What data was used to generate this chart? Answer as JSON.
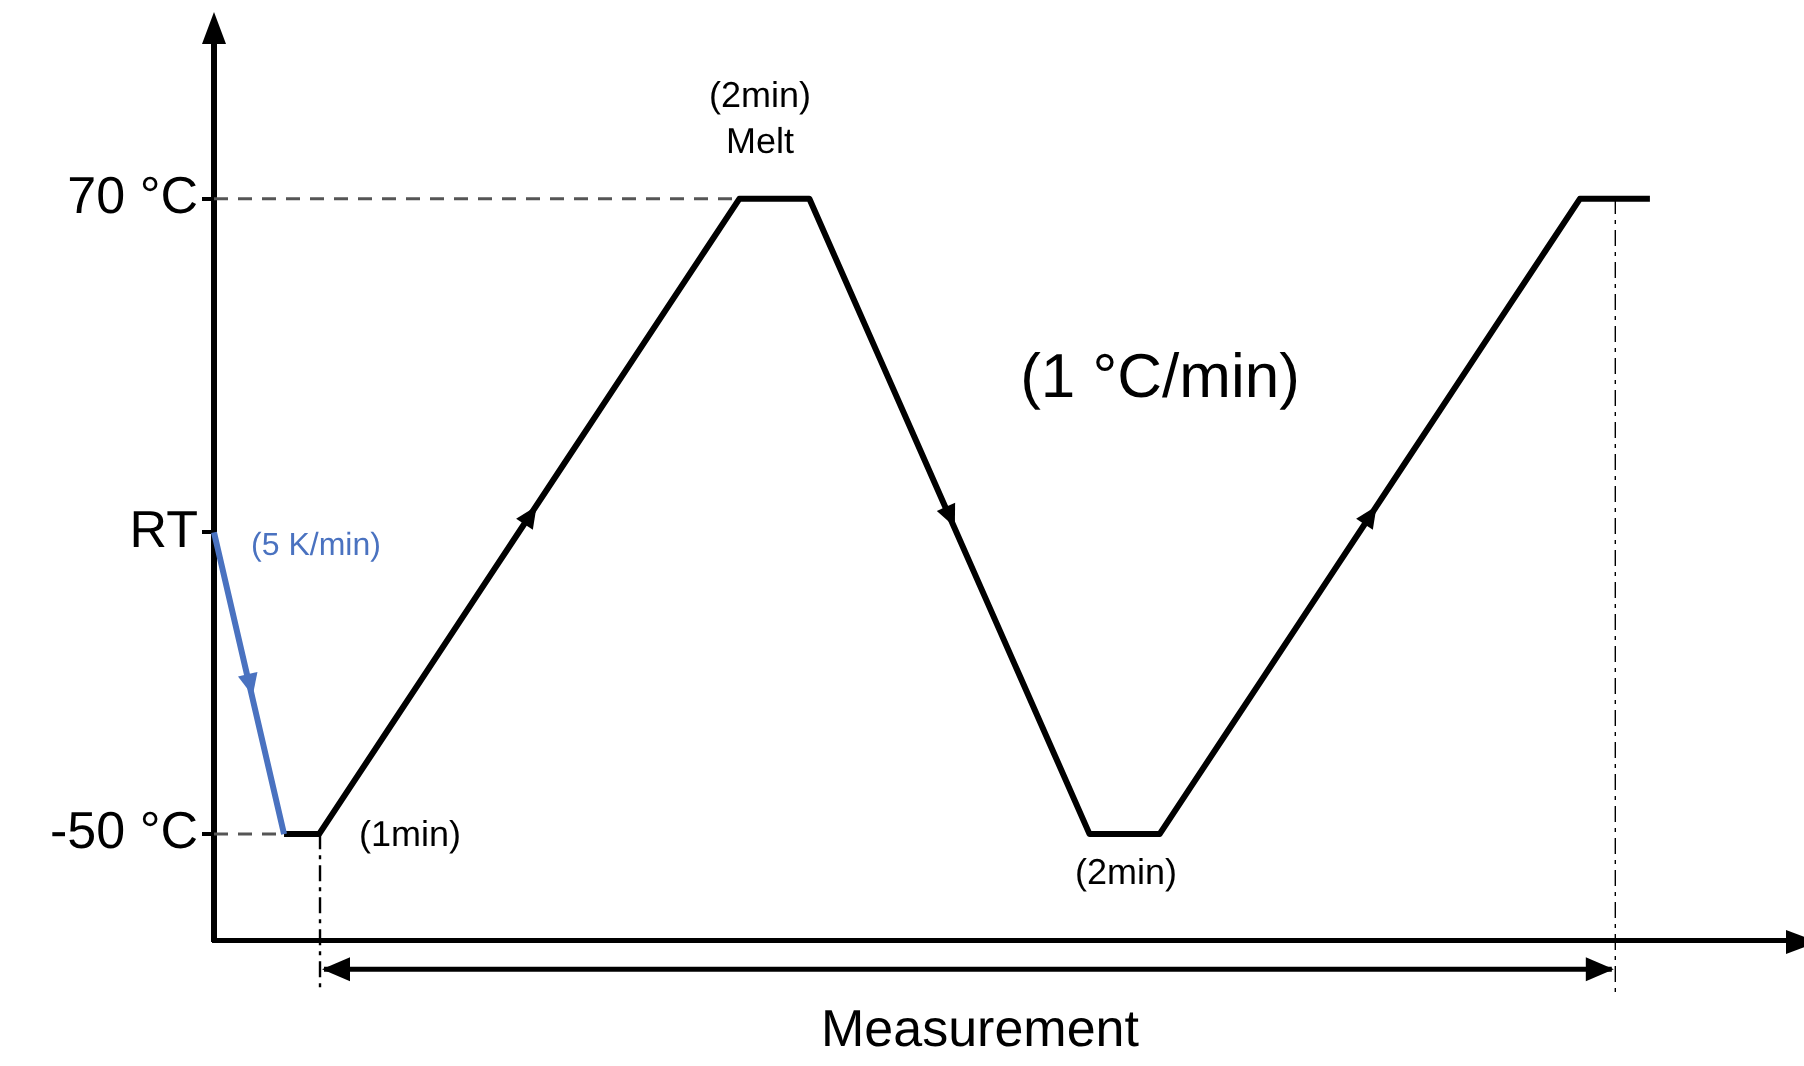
{
  "chart_data": {
    "type": "line",
    "categories": [
      null,
      null,
      null,
      null,
      null,
      null,
      null,
      null,
      null,
      null,
      null,
      null,
      null,
      null,
      null,
      null,
      null,
      null,
      null,
      null,
      null,
      null,
      null,
      null,
      null,
      null,
      null,
      null,
      null,
      null,
      null,
      null,
      null,
      null,
      null,
      null,
      null,
      null,
      null,
      null,
      null,
      null,
      null,
      null,
      null,
      null
    ],
    "ylim": [
      -70,
      100
    ],
    "yticks": [
      {
        "value": 70,
        "label": "70 °C"
      },
      {
        "value": 7,
        "label": "RT"
      },
      {
        "value": -50,
        "label": "-50 °C"
      }
    ],
    "tick_labels": "y",
    "grid": false,
    "marker": "none",
    "series": [
      {
        "color": "#4a72c0",
        "line_style": "solid",
        "values": [
          7,
          -21.5,
          -50,
          null,
          null,
          null,
          null,
          null,
          null,
          null,
          null,
          null,
          null,
          null,
          null,
          null,
          null,
          null,
          null,
          null,
          null,
          null,
          null,
          null,
          null,
          null,
          null,
          null,
          null,
          null,
          null,
          null,
          null,
          null,
          null,
          null,
          null,
          null,
          null,
          null,
          null,
          null,
          null,
          null,
          null,
          null
        ]
      },
      {
        "color": "#000000",
        "line_style": "solid",
        "values": [
          null,
          null,
          -50,
          -50,
          -40,
          -30,
          -20,
          -10,
          0,
          10,
          20,
          30,
          40,
          50,
          60,
          70,
          70,
          70,
          55,
          40,
          25,
          10,
          -5,
          -20,
          -35,
          -50,
          -50,
          -50,
          -40,
          -30,
          -20,
          -10,
          0,
          10,
          20,
          30,
          40,
          50,
          60,
          70,
          70,
          70,
          null,
          null,
          null,
          null
        ]
      },
      {
        "color": "#555555",
        "line_style": "dashed",
        "values": [
          70,
          70,
          70,
          70,
          70,
          70,
          70,
          70,
          70,
          70,
          70,
          70,
          70,
          70,
          70,
          70,
          null,
          null,
          null,
          null,
          null,
          null,
          null,
          null,
          null,
          null,
          null,
          null,
          null,
          null,
          null,
          null,
          null,
          null,
          null,
          null,
          null,
          null,
          null,
          null,
          null,
          null,
          null,
          null,
          null,
          null
        ]
      },
      {
        "color": "#555555",
        "line_style": "dashed",
        "values": [
          -50,
          -50,
          -50,
          null,
          null,
          null,
          null,
          null,
          null,
          null,
          null,
          null,
          null,
          null,
          null,
          null,
          null,
          null,
          null,
          null,
          null,
          null,
          null,
          null,
          null,
          null,
          null,
          null,
          null,
          null,
          null,
          null,
          null,
          null,
          null,
          null,
          null,
          null,
          null,
          null,
          null,
          null,
          null,
          null,
          null,
          null
        ]
      }
    ],
    "annotations": [
      "(2min)\nMelt",
      "(1min)",
      "(2min)",
      "(5 K/min)",
      "(1 °C/min)",
      "Measurement"
    ]
  }
}
